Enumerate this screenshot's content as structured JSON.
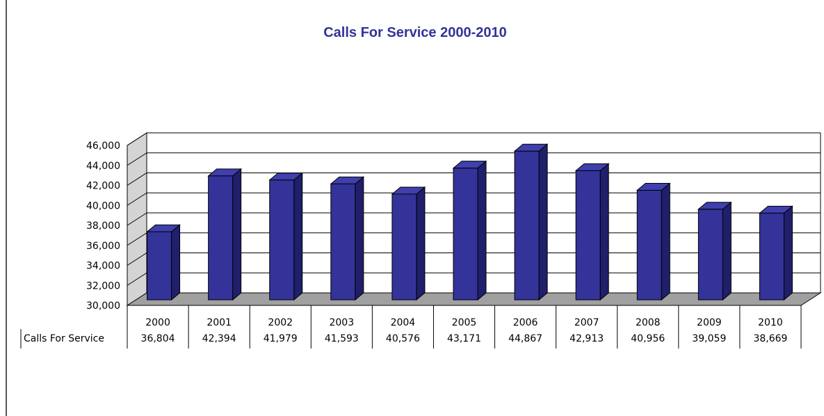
{
  "colors": {
    "bar_front": "#333399",
    "bar_side": "#1f1f6b",
    "bar_top": "#3f3fae",
    "title": "#333399",
    "wall": "#ffffff",
    "side_wall": "#d4d4d4",
    "floor": "#a0a0a0"
  },
  "chart_data": {
    "type": "bar",
    "title": "Calls For Service 2000-2010",
    "xlabel": "",
    "ylabel": "",
    "categories": [
      "2000",
      "2001",
      "2002",
      "2003",
      "2004",
      "2005",
      "2006",
      "2007",
      "2008",
      "2009",
      "2010"
    ],
    "series": [
      {
        "name": "Calls For Service",
        "values": [
          36804,
          42394,
          41979,
          41593,
          40576,
          43171,
          44867,
          42913,
          40956,
          39059,
          38669
        ],
        "labels": [
          "36,804",
          "42,394",
          "41,979",
          "41,593",
          "40,576",
          "43,171",
          "44,867",
          "42,913",
          "40,956",
          "39,059",
          "38,669"
        ]
      }
    ],
    "ylim": [
      30000,
      46000
    ],
    "y_ticks": [
      30000,
      32000,
      34000,
      36000,
      38000,
      40000,
      42000,
      44000,
      46000
    ],
    "y_tick_labels": [
      "30,000",
      "32,000",
      "34,000",
      "36,000",
      "38,000",
      "40,000",
      "42,000",
      "44,000",
      "46,000"
    ],
    "grid": true,
    "legend": "none",
    "data_table": true,
    "style": "3d-column"
  }
}
